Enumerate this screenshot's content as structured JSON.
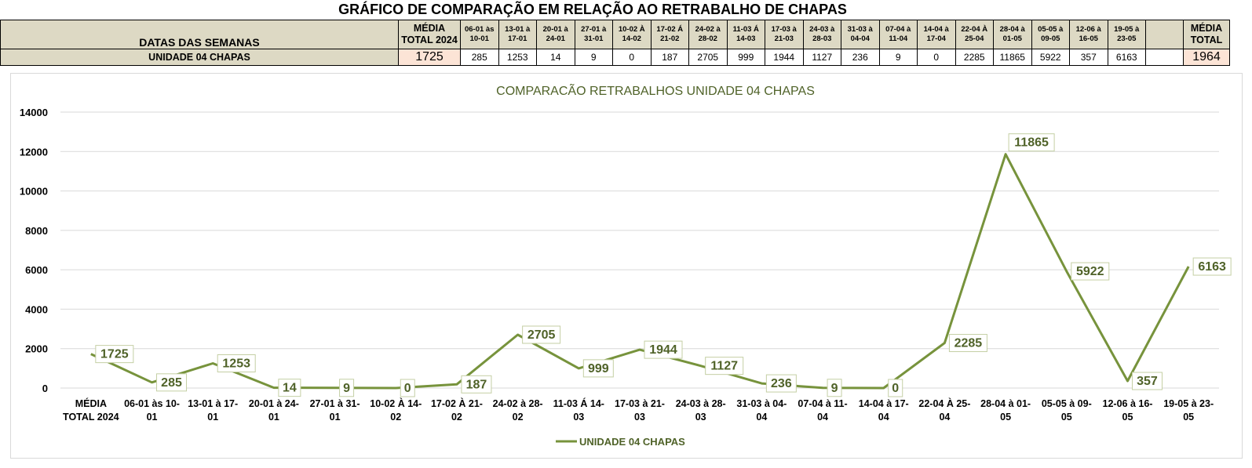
{
  "page_title": "GRÁFICO DE COMPARAÇÃO EM RELAÇÃO AO RETRABALHO DE CHAPAS",
  "table": {
    "row_header": "DATAS DAS SEMANAS",
    "avg_header_left": "MÉDIA TOTAL 2024",
    "avg_header_right": "MÉDIA TOTAL",
    "weeks": [
      "06-01 às 10-01",
      "13-01 à 17-01",
      "20-01 à 24-01",
      "27-01 à 31-01",
      "10-02 À 14-02",
      "17-02 Á 21-02",
      "24-02 à 28-02",
      "11-03 Á 14-03",
      "17-03 à 21-03",
      "24-03 à 28-03",
      "31-03 à 04-04",
      "07-04 à 11-04",
      "14-04 à 17-04",
      "22-04 À 25-04",
      "28-04 à 01-05",
      "05-05 à 09-05",
      "12-06 à 16-05",
      "19-05 à 23-05"
    ],
    "row_label": "UNIDADE 04 CHAPAS",
    "avg_left": "1725",
    "values": [
      "285",
      "1253",
      "14",
      "9",
      "0",
      "187",
      "2705",
      "999",
      "1944",
      "1127",
      "236",
      "9",
      "0",
      "2285",
      "11865",
      "5922",
      "357",
      "6163"
    ],
    "avg_right": "1964"
  },
  "chart_data": {
    "type": "line",
    "title": "COMPARACÃO RETRABALHOS UNIDADE 04 CHAPAS",
    "categories": [
      "MÉDIA TOTAL 2024",
      "06-01 às 10-01",
      "13-01 à 17-01",
      "20-01 à 24-01",
      "27-01 à 31-01",
      "10-02 À 14-02",
      "17-02 À 21-02",
      "24-02 à 28-02",
      "11-03 Á 14-03",
      "17-03 à 21-03",
      "24-03 à 28-03",
      "31-03 à 04-04",
      "07-04 à 11-04",
      "14-04 à 17-04",
      "22-04 À 25-04",
      "28-04 à 01-05",
      "05-05 à 09-05",
      "12-06 à 16-05",
      "19-05 à 23-05"
    ],
    "category_lines": [
      [
        "MÉDIA",
        "TOTAL 2024"
      ],
      [
        "06-01 às 10-",
        "01"
      ],
      [
        "13-01 à 17-",
        "01"
      ],
      [
        "20-01 à 24-",
        "01"
      ],
      [
        "27-01 à 31-",
        "01"
      ],
      [
        "10-02 À 14-",
        "02"
      ],
      [
        "17-02 À 21-",
        "02"
      ],
      [
        "24-02 à 28-",
        "02"
      ],
      [
        "11-03 Á 14-",
        "03"
      ],
      [
        "17-03 à 21-",
        "03"
      ],
      [
        "24-03 à 28-",
        "03"
      ],
      [
        "31-03 à 04-",
        "04"
      ],
      [
        "07-04 à 11-",
        "04"
      ],
      [
        "14-04 à 17-",
        "04"
      ],
      [
        "22-04 À 25-",
        "04"
      ],
      [
        "28-04 à 01-",
        "05"
      ],
      [
        "05-05 à 09-",
        "05"
      ],
      [
        "12-06 à 16-",
        "05"
      ],
      [
        "19-05 à 23-",
        "05"
      ]
    ],
    "series": [
      {
        "name": "UNIDADE 04 CHAPAS",
        "values": [
          1725,
          285,
          1253,
          14,
          9,
          0,
          187,
          2705,
          999,
          1944,
          1127,
          236,
          9,
          0,
          2285,
          11865,
          5922,
          357,
          6163
        ]
      }
    ],
    "y_ticks": [
      0,
      2000,
      4000,
      6000,
      8000,
      10000,
      12000,
      14000
    ],
    "ylim": [
      0,
      14000
    ],
    "grid": true,
    "legend_position": "bottom",
    "colors": {
      "line": "#77933c",
      "title": "#4f6228",
      "label_text": "#4f6228",
      "grid": "#d9d9d9"
    }
  }
}
